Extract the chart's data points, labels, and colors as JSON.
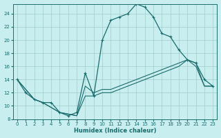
{
  "xlabel": "Humidex (Indice chaleur)",
  "background_color": "#c8eef0",
  "grid_color": "#a0ccc8",
  "line_color": "#1a6b6b",
  "xlim": [
    -0.5,
    23.5
  ],
  "ylim": [
    8,
    25.5
  ],
  "yticks": [
    8,
    10,
    12,
    14,
    16,
    18,
    20,
    22,
    24
  ],
  "xticks": [
    0,
    1,
    2,
    3,
    4,
    5,
    6,
    7,
    8,
    9,
    10,
    11,
    12,
    13,
    14,
    15,
    16,
    17,
    18,
    19,
    20,
    21,
    22,
    23
  ],
  "line1_x": [
    0,
    1,
    2,
    3,
    4,
    5,
    6,
    7,
    8,
    9,
    10,
    11,
    12,
    13,
    14,
    15,
    16,
    17,
    18,
    19,
    20,
    21,
    22,
    23
  ],
  "line1_y": [
    14,
    12,
    11,
    10.5,
    10.5,
    9,
    8.5,
    9,
    15,
    11.5,
    20,
    23,
    23.5,
    24,
    25.5,
    25,
    23.5,
    21,
    20.5,
    18.5,
    17,
    16.5,
    14,
    13
  ],
  "line2_x": [
    0,
    2,
    3,
    5,
    7,
    8,
    9,
    10,
    11,
    12,
    13,
    14,
    15,
    16,
    17,
    18,
    19,
    20,
    21,
    22,
    23
  ],
  "line2_y": [
    14,
    11,
    10.5,
    9,
    8.5,
    13,
    12,
    12.5,
    12.5,
    13,
    13.5,
    14,
    14.5,
    15,
    15.5,
    16,
    16.5,
    17,
    16.5,
    13,
    13
  ],
  "line3_x": [
    0,
    2,
    3,
    5,
    7,
    8,
    9,
    10,
    11,
    12,
    13,
    14,
    15,
    16,
    17,
    18,
    19,
    20,
    21,
    22,
    23
  ],
  "line3_y": [
    14,
    11,
    10.5,
    9,
    8.5,
    11.5,
    11.5,
    12,
    12,
    12.5,
    13,
    13.5,
    14,
    14.5,
    15,
    15.5,
    16,
    17,
    16,
    13,
    13
  ]
}
